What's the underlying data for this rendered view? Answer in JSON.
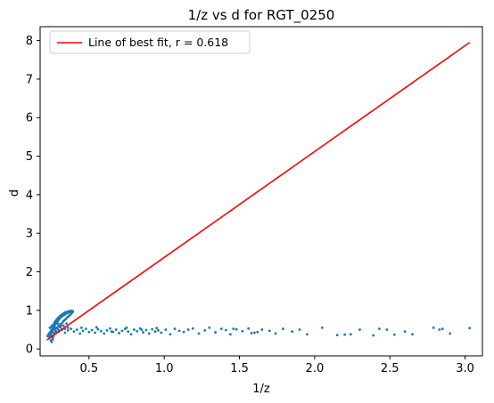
{
  "chart_data": {
    "type": "scatter",
    "title": "1/z vs d for RGT_0250",
    "xlabel": "1/z",
    "ylabel": "d",
    "xlim": [
      0.175,
      3.115
    ],
    "ylim": [
      -0.18,
      8.36
    ],
    "x_ticks": [
      0.5,
      1.0,
      1.5,
      2.0,
      2.5,
      3.0
    ],
    "x_tick_labels": [
      "0.5",
      "1.0",
      "1.5",
      "2.0",
      "2.5",
      "3.0"
    ],
    "y_ticks": [
      0,
      1,
      2,
      3,
      4,
      5,
      6,
      7,
      8
    ],
    "y_tick_labels": [
      "0",
      "1",
      "2",
      "3",
      "4",
      "5",
      "6",
      "7",
      "8"
    ],
    "grid": false,
    "legend_position": "upper-left",
    "series": [
      {
        "type": "line",
        "name": "Line of best fit, r = 0.618",
        "color": "#ff0000",
        "x": [
          0.22,
          3.03
        ],
        "y": [
          0.23,
          7.95
        ]
      },
      {
        "type": "scatter",
        "color": "#1f77b4",
        "points": [
          [
            0.225,
            0.33
          ],
          [
            0.228,
            0.36
          ],
          [
            0.231,
            0.35
          ],
          [
            0.234,
            0.4
          ],
          [
            0.236,
            0.38
          ],
          [
            0.238,
            0.3
          ],
          [
            0.24,
            0.42
          ],
          [
            0.242,
            0.37
          ],
          [
            0.244,
            0.44
          ],
          [
            0.246,
            0.22
          ],
          [
            0.247,
            0.46
          ],
          [
            0.248,
            0.4
          ],
          [
            0.25,
            0.35
          ],
          [
            0.251,
            0.5
          ],
          [
            0.252,
            0.18
          ],
          [
            0.254,
            0.45
          ],
          [
            0.255,
            0.55
          ],
          [
            0.256,
            0.3
          ],
          [
            0.258,
            0.48
          ],
          [
            0.259,
            0.58
          ],
          [
            0.26,
            0.25
          ],
          [
            0.262,
            0.52
          ],
          [
            0.263,
            0.62
          ],
          [
            0.265,
            0.42
          ],
          [
            0.266,
            0.56
          ],
          [
            0.268,
            0.66
          ],
          [
            0.27,
            0.38
          ],
          [
            0.271,
            0.6
          ],
          [
            0.272,
            0.7
          ],
          [
            0.274,
            0.5
          ],
          [
            0.276,
            0.64
          ],
          [
            0.278,
            0.72
          ],
          [
            0.279,
            0.46
          ],
          [
            0.281,
            0.68
          ],
          [
            0.283,
            0.75
          ],
          [
            0.285,
            0.55
          ],
          [
            0.287,
            0.7
          ],
          [
            0.289,
            0.78
          ],
          [
            0.291,
            0.52
          ],
          [
            0.293,
            0.73
          ],
          [
            0.295,
            0.8
          ],
          [
            0.297,
            0.6
          ],
          [
            0.299,
            0.76
          ],
          [
            0.301,
            0.83
          ],
          [
            0.303,
            0.58
          ],
          [
            0.305,
            0.79
          ],
          [
            0.307,
            0.85
          ],
          [
            0.309,
            0.64
          ],
          [
            0.311,
            0.82
          ],
          [
            0.313,
            0.87
          ],
          [
            0.315,
            0.62
          ],
          [
            0.318,
            0.84
          ],
          [
            0.32,
            0.89
          ],
          [
            0.322,
            0.68
          ],
          [
            0.325,
            0.86
          ],
          [
            0.327,
            0.91
          ],
          [
            0.33,
            0.72
          ],
          [
            0.333,
            0.88
          ],
          [
            0.335,
            0.93
          ],
          [
            0.338,
            0.75
          ],
          [
            0.341,
            0.9
          ],
          [
            0.344,
            0.95
          ],
          [
            0.347,
            0.78
          ],
          [
            0.35,
            0.92
          ],
          [
            0.353,
            0.96
          ],
          [
            0.356,
            0.82
          ],
          [
            0.359,
            0.94
          ],
          [
            0.362,
            0.97
          ],
          [
            0.365,
            0.85
          ],
          [
            0.368,
            0.95
          ],
          [
            0.371,
            0.98
          ],
          [
            0.374,
            0.88
          ],
          [
            0.377,
            0.96
          ],
          [
            0.38,
            0.99
          ],
          [
            0.383,
            0.92
          ],
          [
            0.386,
            0.97
          ],
          [
            0.39,
            0.95
          ],
          [
            0.393,
            0.98
          ],
          [
            0.24,
            0.55
          ],
          [
            0.252,
            0.6
          ],
          [
            0.262,
            0.32
          ],
          [
            0.27,
            0.54
          ],
          [
            0.282,
            0.44
          ],
          [
            0.292,
            0.66
          ],
          [
            0.3,
            0.48
          ],
          [
            0.31,
            0.56
          ],
          [
            0.32,
            0.5
          ],
          [
            0.33,
            0.6
          ],
          [
            0.34,
            0.52
          ],
          [
            0.35,
            0.66
          ],
          [
            0.36,
            0.55
          ],
          [
            0.3,
            0.45
          ],
          [
            0.32,
            0.5
          ],
          [
            0.34,
            0.42
          ],
          [
            0.36,
            0.48
          ],
          [
            0.38,
            0.52
          ],
          [
            0.4,
            0.45
          ],
          [
            0.42,
            0.5
          ],
          [
            0.44,
            0.4
          ],
          [
            0.46,
            0.47
          ],
          [
            0.48,
            0.52
          ],
          [
            0.5,
            0.44
          ],
          [
            0.52,
            0.49
          ],
          [
            0.54,
            0.42
          ],
          [
            0.56,
            0.51
          ],
          [
            0.58,
            0.46
          ],
          [
            0.6,
            0.4
          ],
          [
            0.62,
            0.48
          ],
          [
            0.64,
            0.53
          ],
          [
            0.66,
            0.44
          ],
          [
            0.68,
            0.5
          ],
          [
            0.7,
            0.41
          ],
          [
            0.72,
            0.47
          ],
          [
            0.74,
            0.52
          ],
          [
            0.76,
            0.45
          ],
          [
            0.78,
            0.38
          ],
          [
            0.8,
            0.5
          ],
          [
            0.82,
            0.46
          ],
          [
            0.84,
            0.53
          ],
          [
            0.86,
            0.43
          ],
          [
            0.88,
            0.49
          ],
          [
            0.9,
            0.4
          ],
          [
            0.92,
            0.51
          ],
          [
            0.94,
            0.45
          ],
          [
            0.96,
            0.48
          ],
          [
            0.98,
            0.42
          ],
          [
            1.01,
            0.5
          ],
          [
            1.04,
            0.38
          ],
          [
            1.07,
            0.52
          ],
          [
            1.1,
            0.47
          ],
          [
            1.13,
            0.44
          ],
          [
            1.16,
            0.5
          ],
          [
            1.19,
            0.53
          ],
          [
            1.23,
            0.4
          ],
          [
            1.27,
            0.48
          ],
          [
            1.3,
            0.55
          ],
          [
            1.34,
            0.43
          ],
          [
            1.38,
            0.52
          ],
          [
            1.41,
            0.49
          ],
          [
            1.44,
            0.38
          ],
          [
            1.48,
            0.51
          ],
          [
            1.52,
            0.46
          ],
          [
            1.56,
            0.53
          ],
          [
            1.6,
            0.42
          ],
          [
            1.65,
            0.5
          ],
          [
            1.7,
            0.47
          ],
          [
            1.74,
            0.4
          ],
          [
            1.79,
            0.52
          ],
          [
            1.85,
            0.45
          ],
          [
            1.9,
            0.5
          ],
          [
            1.95,
            0.38
          ],
          [
            2.05,
            0.55
          ],
          [
            2.15,
            0.36
          ],
          [
            2.2,
            0.37
          ],
          [
            2.24,
            0.38
          ],
          [
            2.3,
            0.5
          ],
          [
            2.39,
            0.35
          ],
          [
            2.43,
            0.52
          ],
          [
            2.48,
            0.5
          ],
          [
            2.53,
            0.37
          ],
          [
            2.6,
            0.45
          ],
          [
            2.65,
            0.38
          ],
          [
            2.79,
            0.55
          ],
          [
            2.83,
            0.5
          ],
          [
            2.85,
            0.52
          ],
          [
            2.9,
            0.4
          ],
          [
            3.03,
            0.54
          ],
          [
            1.62,
            0.44
          ],
          [
            1.58,
            0.41
          ],
          [
            1.46,
            0.52
          ],
          [
            0.45,
            0.55
          ],
          [
            0.55,
            0.56
          ],
          [
            0.65,
            0.45
          ],
          [
            0.75,
            0.55
          ],
          [
            0.85,
            0.5
          ],
          [
            0.95,
            0.54
          ]
        ]
      }
    ]
  }
}
